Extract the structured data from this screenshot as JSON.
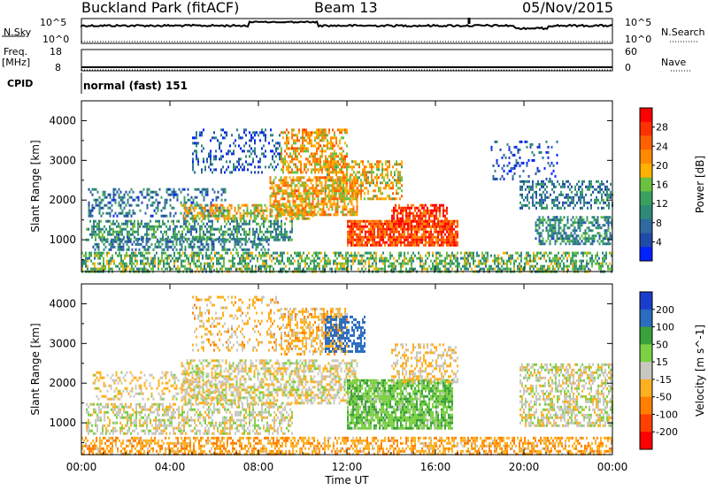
{
  "header": {
    "station": "Buckland Park (fitACF)",
    "beam": "Beam 13",
    "date": "05/Nov/2015"
  },
  "noise_panel": {
    "left_label": "N.Sky",
    "right_label": "N.Search",
    "left_ticks": [
      "10^5",
      "10^0"
    ],
    "right_ticks": [
      "10^5",
      "10^0"
    ]
  },
  "freq_panel": {
    "left_label_1": "Freq.",
    "left_label_2": "[MHz]",
    "right_label": "Nave",
    "left_ticks": [
      "18",
      "8"
    ],
    "right_ticks": [
      "60",
      "0"
    ]
  },
  "cpid_panel": {
    "label": "CPID",
    "text": "normal (fast) 151"
  },
  "chart_data": [
    {
      "type": "heatmap",
      "panel": "power",
      "xlabel": "",
      "ylabel": "Slant Range [km]",
      "xlim": [
        0,
        24
      ],
      "ylim": [
        200,
        4500
      ],
      "x_ticks": [
        0,
        4,
        8,
        12,
        16,
        20,
        24
      ],
      "y_ticks": [
        1000,
        2000,
        3000,
        4000
      ],
      "colorbar": {
        "label": "Power [dB]",
        "ticks": [
          "4",
          "8",
          "12",
          "16",
          "20",
          "24",
          "28"
        ],
        "colors": [
          "#0022ff",
          "#1f4aa8",
          "#2f6aa0",
          "#2f8a78",
          "#3aa060",
          "#6cc040",
          "#ffb000",
          "#ff8a00",
          "#ff6000",
          "#ff3000",
          "#ff0000"
        ]
      },
      "regions": [
        {
          "t0": 0,
          "t1": 24,
          "r0": 200,
          "r1": 700,
          "level": 14,
          "density": 0.55
        },
        {
          "t0": 0.3,
          "t1": 6.5,
          "r0": 1600,
          "r1": 2300,
          "level": 9,
          "density": 0.35
        },
        {
          "t0": 0.2,
          "t1": 9.5,
          "r0": 1000,
          "r1": 1500,
          "level": 12,
          "density": 0.5
        },
        {
          "t0": 0.5,
          "t1": 8.5,
          "r0": 750,
          "r1": 1050,
          "level": 10,
          "density": 0.5
        },
        {
          "t0": 4.5,
          "t1": 10.5,
          "r0": 1500,
          "r1": 1900,
          "level": 18,
          "density": 0.6
        },
        {
          "t0": 8.5,
          "t1": 12.5,
          "r0": 1600,
          "r1": 2600,
          "level": 20,
          "density": 0.65
        },
        {
          "t0": 9.0,
          "t1": 12.0,
          "r0": 2700,
          "r1": 3800,
          "level": 20,
          "density": 0.55
        },
        {
          "t0": 11.0,
          "t1": 14.5,
          "r0": 2000,
          "r1": 3000,
          "level": 19,
          "density": 0.5
        },
        {
          "t0": 12.0,
          "t1": 17.0,
          "r0": 850,
          "r1": 1500,
          "level": 25,
          "density": 0.85
        },
        {
          "t0": 14.0,
          "t1": 16.5,
          "r0": 1300,
          "r1": 1900,
          "level": 26,
          "density": 0.7
        },
        {
          "t0": 5.0,
          "t1": 9.0,
          "r0": 2700,
          "r1": 3800,
          "level": 7,
          "density": 0.25
        },
        {
          "t0": 19.8,
          "t1": 24,
          "r0": 1800,
          "r1": 2500,
          "level": 10,
          "density": 0.45
        },
        {
          "t0": 20.5,
          "t1": 24,
          "r0": 900,
          "r1": 1600,
          "level": 11,
          "density": 0.55
        },
        {
          "t0": 18.5,
          "t1": 21.5,
          "r0": 2500,
          "r1": 3500,
          "level": 6,
          "density": 0.15
        }
      ]
    },
    {
      "type": "heatmap",
      "panel": "velocity",
      "xlabel": "Time UT",
      "ylabel": "Slant Range [km]",
      "xlim": [
        0,
        24
      ],
      "ylim": [
        200,
        4500
      ],
      "x_ticks": [
        0,
        4,
        8,
        12,
        16,
        20,
        24
      ],
      "x_tick_labels": [
        "00:00",
        "04:00",
        "08:00",
        "12:00",
        "16:00",
        "20:00",
        "00:00"
      ],
      "y_ticks": [
        1000,
        2000,
        3000,
        4000
      ],
      "colorbar": {
        "label": "Velocity [m s^-1]",
        "ticks": [
          "200",
          "100",
          "50",
          "15",
          "-15",
          "-50",
          "-100",
          "-200"
        ],
        "colors": [
          "#1a3dcc",
          "#2a6cc0",
          "#3aa03a",
          "#7bd043",
          "#c8c8c0",
          "#ffb020",
          "#ff8000",
          "#ff4000",
          "#ff0000"
        ]
      },
      "regions": [
        {
          "t0": 0,
          "t1": 24,
          "r0": 200,
          "r1": 650,
          "level": -40,
          "density": 0.55
        },
        {
          "t0": 0.2,
          "t1": 9.5,
          "r0": 750,
          "r1": 1500,
          "level": 0,
          "density": 0.5
        },
        {
          "t0": 0.5,
          "t1": 6.5,
          "r0": 1600,
          "r1": 2300,
          "level": -10,
          "density": 0.3
        },
        {
          "t0": 4.5,
          "t1": 12.5,
          "r0": 1500,
          "r1": 2600,
          "level": -5,
          "density": 0.55
        },
        {
          "t0": 9.0,
          "t1": 12.0,
          "r0": 2700,
          "r1": 3900,
          "level": -30,
          "density": 0.5
        },
        {
          "t0": 11.0,
          "t1": 12.8,
          "r0": 2800,
          "r1": 3700,
          "level": 150,
          "density": 0.55
        },
        {
          "t0": 12.0,
          "t1": 16.8,
          "r0": 850,
          "r1": 2100,
          "level": 40,
          "density": 0.8
        },
        {
          "t0": 14.0,
          "t1": 17.0,
          "r0": 2000,
          "r1": 3000,
          "level": -20,
          "density": 0.4
        },
        {
          "t0": 19.8,
          "t1": 24,
          "r0": 900,
          "r1": 2500,
          "level": 0,
          "density": 0.55
        },
        {
          "t0": 5.0,
          "t1": 9.0,
          "r0": 2800,
          "r1": 4200,
          "level": -25,
          "density": 0.25
        }
      ]
    }
  ]
}
